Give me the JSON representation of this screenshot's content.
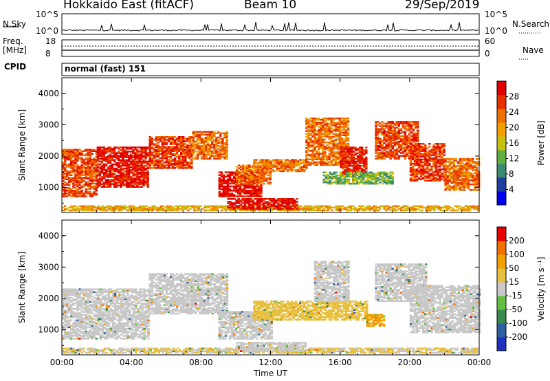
{
  "header": {
    "title": "Hokkaido East (fitACF)",
    "beam": "Beam 10",
    "date": "29/Sep/2019"
  },
  "top_panel": {
    "nsky_label": "N.Sky",
    "nsky_ticks": [
      "10^5",
      "10^0"
    ],
    "nsearch_label": "N.Search",
    "freq_label_line1": "Freq.",
    "freq_label_line2": "[MHz]",
    "freq_ticks": [
      "18",
      "8"
    ],
    "nave_label": "Nave",
    "nave_ticks": [
      "60",
      "0"
    ],
    "cpid_label": "CPID",
    "cpid_value": "normal (fast) 151"
  },
  "chart_data": [
    {
      "type": "heatmap",
      "title": "",
      "xlabel": "",
      "ylabel": "Slant Range [km]",
      "xlim": [
        0,
        24
      ],
      "ylim": [
        200,
        4500
      ],
      "x_ticks": [
        "00:00",
        "04:00",
        "08:00",
        "12:00",
        "16:00",
        "20:00",
        "00:00"
      ],
      "y_ticks": [
        1000,
        2000,
        3000,
        4000
      ],
      "colorbar": {
        "label": "Power [dB]",
        "ticks": [
          "4",
          "8",
          "12",
          "16",
          "20",
          "24",
          "28"
        ],
        "range": [
          0,
          30
        ],
        "colors": [
          "#0000ee",
          "#2040a0",
          "#3a8a70",
          "#60b040",
          "#c8c010",
          "#f0a000",
          "#f07000",
          "#e83000",
          "#e00000"
        ]
      },
      "regions": [
        {
          "t0": 0.0,
          "t1": 2.0,
          "r0": 700,
          "r1": 2200,
          "v": 24
        },
        {
          "t0": 2.0,
          "t1": 5.0,
          "r0": 1000,
          "r1": 2300,
          "v": 27
        },
        {
          "t0": 5.0,
          "t1": 7.5,
          "r0": 1600,
          "r1": 2600,
          "v": 25
        },
        {
          "t0": 7.5,
          "t1": 9.5,
          "r0": 1900,
          "r1": 2800,
          "v": 22
        },
        {
          "t0": 9.0,
          "t1": 11.5,
          "r0": 700,
          "r1": 1500,
          "v": 28
        },
        {
          "t0": 10.0,
          "t1": 12.0,
          "r0": 1100,
          "r1": 1700,
          "v": 22
        },
        {
          "t0": 11.0,
          "t1": 14.0,
          "r0": 1500,
          "r1": 1900,
          "v": 21
        },
        {
          "t0": 14.0,
          "t1": 16.5,
          "r0": 1700,
          "r1": 3200,
          "v": 22
        },
        {
          "t0": 16.0,
          "t1": 17.5,
          "r0": 1400,
          "r1": 2300,
          "v": 26
        },
        {
          "t0": 18.0,
          "t1": 20.5,
          "r0": 1900,
          "r1": 3100,
          "v": 24
        },
        {
          "t0": 20.0,
          "t1": 22.0,
          "r0": 1200,
          "r1": 2400,
          "v": 25
        },
        {
          "t0": 22.0,
          "t1": 24.0,
          "r0": 900,
          "r1": 1900,
          "v": 22
        },
        {
          "t0": 0.0,
          "t1": 24.0,
          "r0": 250,
          "r1": 420,
          "v": 18
        },
        {
          "t0": 9.5,
          "t1": 13.5,
          "r0": 300,
          "r1": 650,
          "v": 28
        },
        {
          "t0": 15.0,
          "t1": 19.0,
          "r0": 1100,
          "r1": 1500,
          "v": 12
        }
      ]
    },
    {
      "type": "heatmap",
      "title": "",
      "xlabel": "Time UT",
      "ylabel": "Slant Range [km]",
      "xlim": [
        0,
        24
      ],
      "ylim": [
        200,
        4500
      ],
      "x_ticks": [
        "00:00",
        "04:00",
        "08:00",
        "12:00",
        "16:00",
        "20:00",
        "00:00"
      ],
      "y_ticks": [
        1000,
        2000,
        3000,
        4000
      ],
      "colorbar": {
        "label": "Velocity [m s⁻¹]",
        "ticks": [
          "200",
          "100",
          "50",
          "15",
          "-15",
          "-50",
          "-100",
          "-200"
        ],
        "range": [
          -250,
          250
        ],
        "colors": [
          "#2030c0",
          "#3060a0",
          "#3a8a50",
          "#60c040",
          "#c8c8c8",
          "#e8c040",
          "#f0a000",
          "#f07000",
          "#e80000"
        ]
      },
      "regions": [
        {
          "t0": 0.0,
          "t1": 5.0,
          "r0": 700,
          "r1": 2300,
          "v": 0
        },
        {
          "t0": 5.0,
          "t1": 9.5,
          "r0": 1500,
          "r1": 2800,
          "v": 0
        },
        {
          "t0": 9.0,
          "t1": 12.0,
          "r0": 700,
          "r1": 1600,
          "v": 0
        },
        {
          "t0": 11.0,
          "t1": 17.5,
          "r0": 1300,
          "r1": 1900,
          "v": 60
        },
        {
          "t0": 17.5,
          "t1": 18.5,
          "r0": 1100,
          "r1": 1500,
          "v": 120
        },
        {
          "t0": 14.5,
          "t1": 16.5,
          "r0": 1900,
          "r1": 3200,
          "v": 0
        },
        {
          "t0": 18.0,
          "t1": 21.0,
          "r0": 1900,
          "r1": 3100,
          "v": 0
        },
        {
          "t0": 20.0,
          "t1": 24.0,
          "r0": 900,
          "r1": 2400,
          "v": 0
        },
        {
          "t0": 0.0,
          "t1": 24.0,
          "r0": 250,
          "r1": 420,
          "v": 30
        },
        {
          "t0": 10.0,
          "t1": 14.0,
          "r0": 300,
          "r1": 600,
          "v": 0
        }
      ]
    }
  ]
}
